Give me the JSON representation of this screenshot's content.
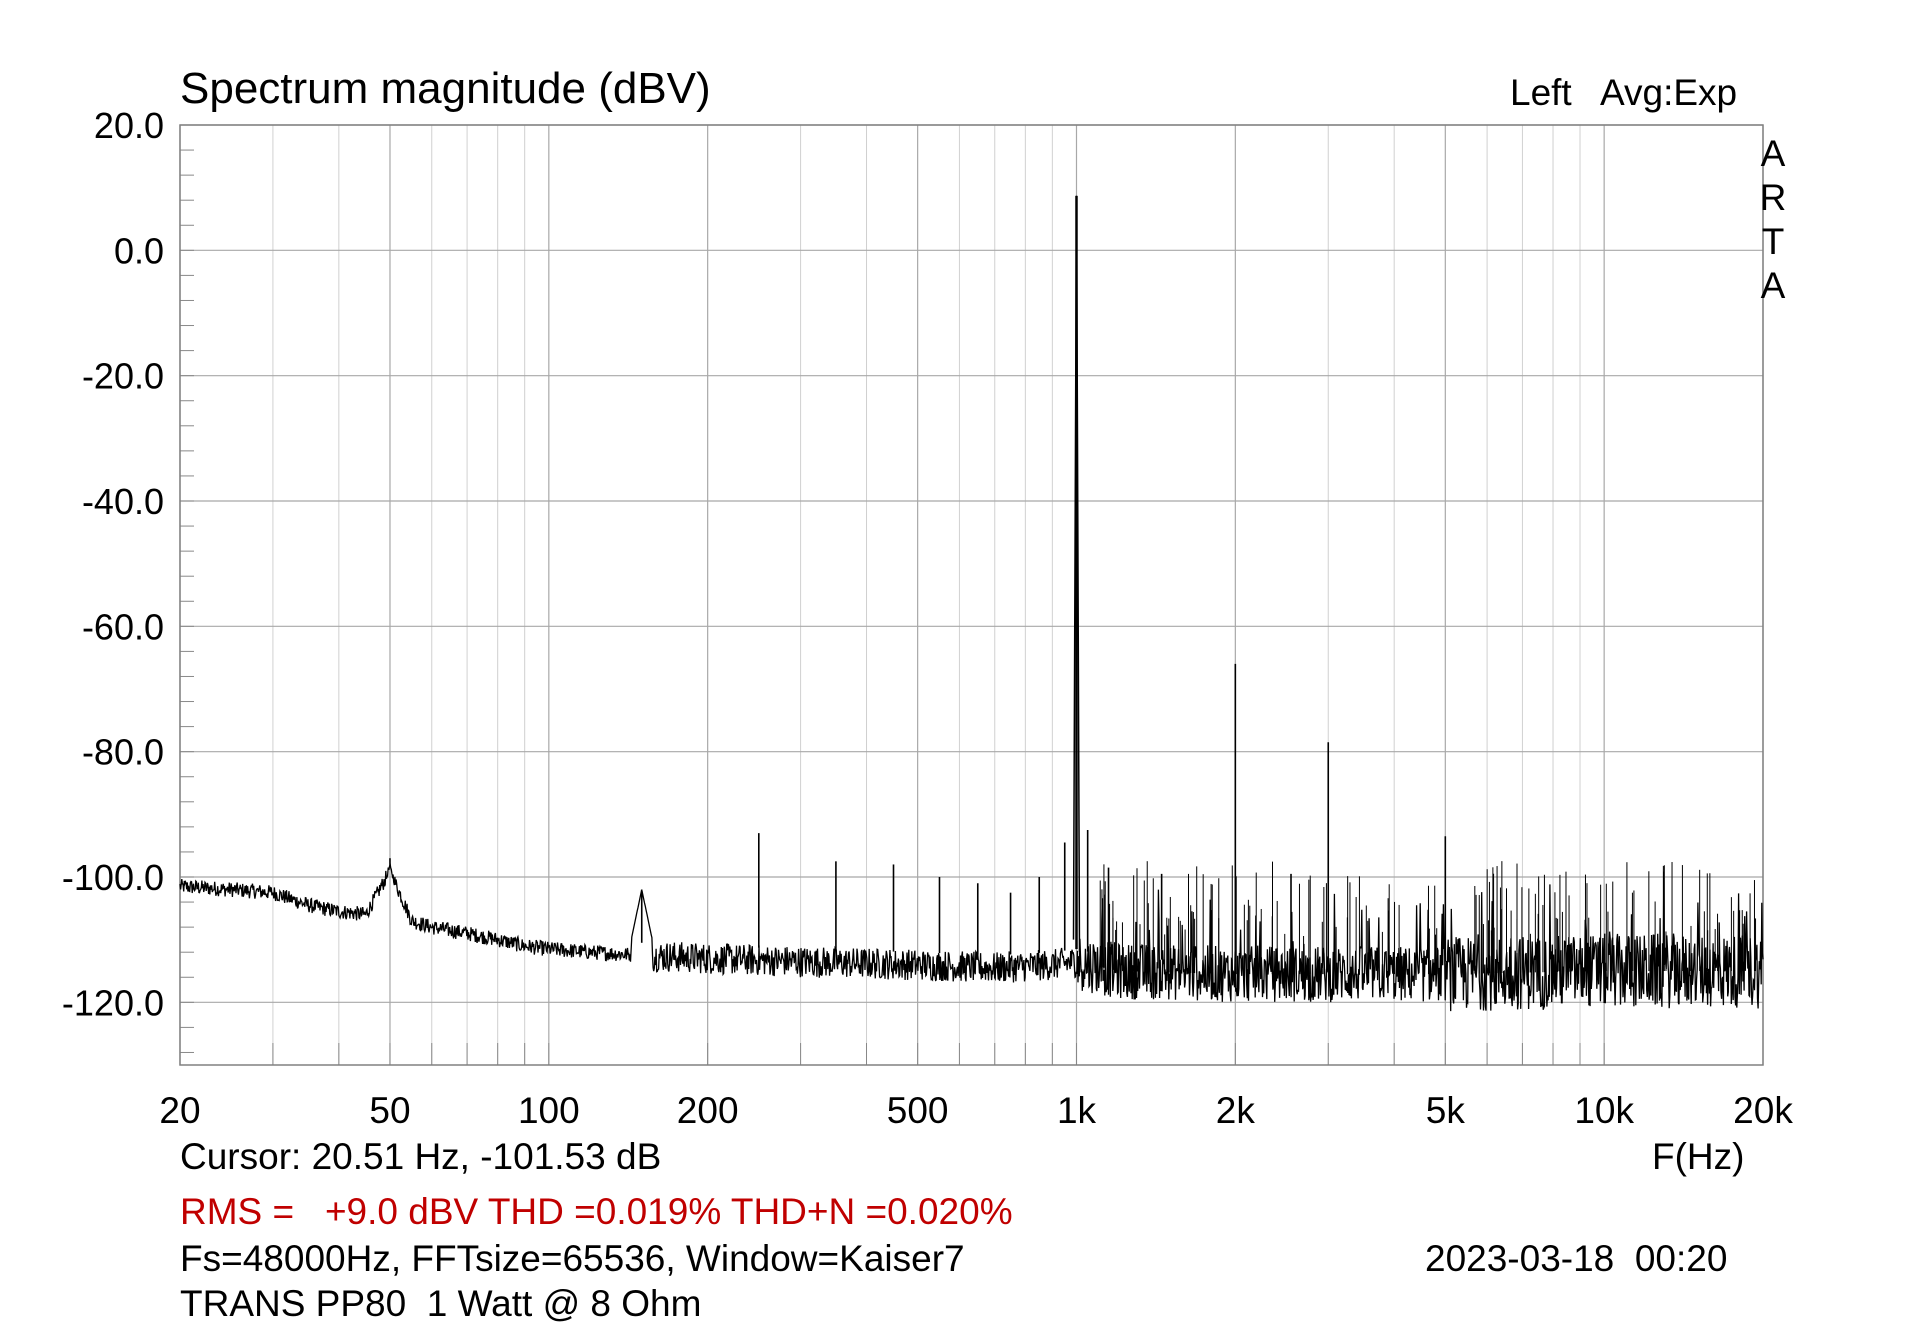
{
  "chart_data": {
    "type": "line",
    "title": "Spectrum magnitude (dBV)",
    "channel": "Left",
    "averaging": "Avg:Exp",
    "brand_letters": [
      "A",
      "R",
      "T",
      "A"
    ],
    "xlabel": "F(Hz)",
    "x_scale": "log",
    "xlim": [
      20,
      20000
    ],
    "ylim": [
      -130,
      20
    ],
    "grid": true,
    "x_ticks": [
      20,
      50,
      100,
      200,
      500,
      1000,
      2000,
      5000,
      10000,
      20000
    ],
    "x_tick_labels": [
      "20",
      "50",
      "100",
      "200",
      "500",
      "1k",
      "2k",
      "5k",
      "10k",
      "20k"
    ],
    "y_ticks": [
      20,
      0,
      -20,
      -40,
      -60,
      -80,
      -100,
      -120
    ],
    "y_tick_labels": [
      "20.0",
      "0.0",
      "-20.0",
      "-40.0",
      "-60.0",
      "-80.0",
      "-100.0",
      "-120.0"
    ],
    "series": [
      {
        "name": "Left",
        "color": "#000000",
        "noise_floor": [
          [
            20,
            -101.5
          ],
          [
            25,
            -102
          ],
          [
            30,
            -102.5
          ],
          [
            35,
            -104.5
          ],
          [
            40,
            -105.5
          ],
          [
            45,
            -106
          ],
          [
            50,
            -99
          ],
          [
            55,
            -107
          ],
          [
            60,
            -108
          ],
          [
            70,
            -109
          ],
          [
            80,
            -110
          ],
          [
            90,
            -111
          ],
          [
            100,
            -111.5
          ],
          [
            120,
            -112
          ],
          [
            150,
            -112.5
          ],
          [
            200,
            -113
          ],
          [
            300,
            -113.5
          ],
          [
            500,
            -114
          ],
          [
            700,
            -114.5
          ],
          [
            900,
            -114
          ],
          [
            1000,
            -113.5
          ],
          [
            1200,
            -115
          ],
          [
            2000,
            -115.5
          ],
          [
            5000,
            -115.5
          ],
          [
            10000,
            -115
          ],
          [
            20000,
            -115
          ]
        ],
        "peaks": [
          {
            "f": 50,
            "db": -98
          },
          {
            "f": 150,
            "db": -102
          },
          {
            "f": 250,
            "db": -93
          },
          {
            "f": 350,
            "db": -97.5
          },
          {
            "f": 450,
            "db": -98
          },
          {
            "f": 550,
            "db": -100
          },
          {
            "f": 650,
            "db": -101
          },
          {
            "f": 750,
            "db": -102.5
          },
          {
            "f": 850,
            "db": -100
          },
          {
            "f": 950,
            "db": -94.5
          },
          {
            "f": 1000,
            "db": 8.7
          },
          {
            "f": 1050,
            "db": -92.5
          },
          {
            "f": 1150,
            "db": -98.5
          },
          {
            "f": 1450,
            "db": -99.5
          },
          {
            "f": 2000,
            "db": -66
          },
          {
            "f": 2550,
            "db": -99.5
          },
          {
            "f": 3000,
            "db": -78.5
          },
          {
            "f": 5000,
            "db": -93.5
          }
        ]
      }
    ],
    "cursor_readout": "Cursor: 20.51 Hz, -101.53 dB",
    "measurement": "RMS =   +9.0 dBV THD =0.019% THD+N =0.020%",
    "fft_params": "Fs=48000Hz, FFTsize=65536, Window=Kaiser7",
    "timestamp": "2023-03-18  00:20",
    "device_label": "TRANS PP80  1 Watt @ 8 Ohm"
  }
}
